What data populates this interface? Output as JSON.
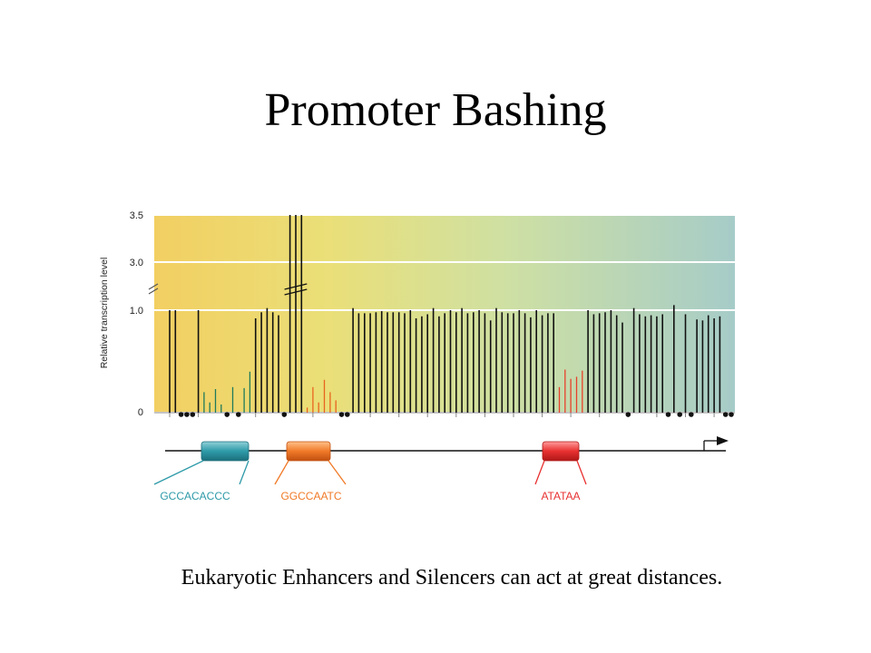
{
  "slide": {
    "title": "Promoter Bashing",
    "caption": "Eukaryotic Enhancers and Silencers can act at great distances."
  },
  "colors": {
    "black_bar": "#111111",
    "green_bar": "#1f7a5c",
    "orange_bar": "#e8641e",
    "red_bar": "#e8402a",
    "teal_box": "#2e9aa8",
    "orange_box": "#f07a28",
    "red_box": "#e83030"
  },
  "chart_data": {
    "type": "bar",
    "ylabel": "Relative transcription level",
    "y_ticks": [
      "3.5",
      "3.0",
      "1.0",
      "0"
    ],
    "break_marks": "//",
    "bars": [
      {
        "v": 1.0,
        "c": "k"
      },
      {
        "v": 1.0,
        "c": "k"
      },
      {
        "v": 0,
        "c": "dot"
      },
      {
        "v": 0,
        "c": "dot"
      },
      {
        "v": 0,
        "c": "dot"
      },
      {
        "v": 1.0,
        "c": "k"
      },
      {
        "v": 0.2,
        "c": "g"
      },
      {
        "v": 0.1,
        "c": "g"
      },
      {
        "v": 0.23,
        "c": "g"
      },
      {
        "v": 0.08,
        "c": "g"
      },
      {
        "v": 0,
        "c": "dot"
      },
      {
        "v": 0.25,
        "c": "g"
      },
      {
        "v": 0,
        "c": "dot"
      },
      {
        "v": 0.24,
        "c": "g"
      },
      {
        "v": 0.4,
        "c": "g"
      },
      {
        "v": 0.92,
        "c": "k"
      },
      {
        "v": 0.98,
        "c": "k"
      },
      {
        "v": 1.02,
        "c": "k"
      },
      {
        "v": 0.98,
        "c": "k"
      },
      {
        "v": 0.95,
        "c": "k"
      },
      {
        "v": 0,
        "c": "dot"
      },
      {
        "v": 3.5,
        "c": "k"
      },
      {
        "v": 3.5,
        "c": "k"
      },
      {
        "v": 3.5,
        "c": "k"
      },
      {
        "v": 0.05,
        "c": "o"
      },
      {
        "v": 0.25,
        "c": "o"
      },
      {
        "v": 0.1,
        "c": "o"
      },
      {
        "v": 0.32,
        "c": "o"
      },
      {
        "v": 0.2,
        "c": "o"
      },
      {
        "v": 0.12,
        "c": "o"
      },
      {
        "v": 0,
        "c": "dot"
      },
      {
        "v": 0,
        "c": "dot"
      },
      {
        "v": 1.02,
        "c": "k"
      },
      {
        "v": 0.97,
        "c": "k"
      },
      {
        "v": 0.97,
        "c": "k"
      },
      {
        "v": 0.97,
        "c": "k"
      },
      {
        "v": 0.98,
        "c": "k"
      },
      {
        "v": 0.99,
        "c": "k"
      },
      {
        "v": 0.98,
        "c": "k"
      },
      {
        "v": 0.98,
        "c": "k"
      },
      {
        "v": 0.98,
        "c": "k"
      },
      {
        "v": 0.97,
        "c": "k"
      },
      {
        "v": 1.0,
        "c": "k"
      },
      {
        "v": 0.92,
        "c": "k"
      },
      {
        "v": 0.94,
        "c": "k"
      },
      {
        "v": 0.96,
        "c": "k"
      },
      {
        "v": 1.02,
        "c": "k"
      },
      {
        "v": 0.94,
        "c": "k"
      },
      {
        "v": 0.97,
        "c": "k"
      },
      {
        "v": 1.0,
        "c": "k"
      },
      {
        "v": 0.98,
        "c": "k"
      },
      {
        "v": 1.02,
        "c": "k"
      },
      {
        "v": 0.97,
        "c": "k"
      },
      {
        "v": 0.98,
        "c": "k"
      },
      {
        "v": 1.0,
        "c": "k"
      },
      {
        "v": 0.97,
        "c": "k"
      },
      {
        "v": 0.9,
        "c": "k"
      },
      {
        "v": 1.02,
        "c": "k"
      },
      {
        "v": 0.98,
        "c": "k"
      },
      {
        "v": 0.97,
        "c": "k"
      },
      {
        "v": 0.97,
        "c": "k"
      },
      {
        "v": 1.0,
        "c": "k"
      },
      {
        "v": 0.97,
        "c": "k"
      },
      {
        "v": 0.93,
        "c": "k"
      },
      {
        "v": 1.0,
        "c": "k"
      },
      {
        "v": 0.95,
        "c": "k"
      },
      {
        "v": 0.97,
        "c": "k"
      },
      {
        "v": 0.97,
        "c": "k"
      },
      {
        "v": 0.25,
        "c": "r"
      },
      {
        "v": 0.42,
        "c": "r"
      },
      {
        "v": 0.33,
        "c": "r"
      },
      {
        "v": 0.35,
        "c": "r"
      },
      {
        "v": 0.41,
        "c": "r"
      },
      {
        "v": 1.0,
        "c": "k"
      },
      {
        "v": 0.96,
        "c": "k"
      },
      {
        "v": 0.97,
        "c": "k"
      },
      {
        "v": 0.98,
        "c": "k"
      },
      {
        "v": 1.0,
        "c": "k"
      },
      {
        "v": 0.95,
        "c": "k"
      },
      {
        "v": 0.88,
        "c": "k"
      },
      {
        "v": 0,
        "c": "dot"
      },
      {
        "v": 1.02,
        "c": "k"
      },
      {
        "v": 0.96,
        "c": "k"
      },
      {
        "v": 0.94,
        "c": "k"
      },
      {
        "v": 0.95,
        "c": "k"
      },
      {
        "v": 0.94,
        "c": "k"
      },
      {
        "v": 0.96,
        "c": "k"
      },
      {
        "v": 0,
        "c": "dot"
      },
      {
        "v": 1.05,
        "c": "k"
      },
      {
        "v": 0,
        "c": "dot"
      },
      {
        "v": 0.96,
        "c": "k"
      },
      {
        "v": 0,
        "c": "dot"
      },
      {
        "v": 0.91,
        "c": "k"
      },
      {
        "v": 0.9,
        "c": "k"
      },
      {
        "v": 0.95,
        "c": "k"
      },
      {
        "v": 0.92,
        "c": "k"
      },
      {
        "v": 0.94,
        "c": "k"
      },
      {
        "v": 0,
        "c": "dot"
      },
      {
        "v": 0,
        "c": "dot"
      }
    ]
  },
  "elements": [
    {
      "label": "GCCACACCC",
      "color": "#2e9aa8"
    },
    {
      "label": "GGCCAATC",
      "color": "#f07a28"
    },
    {
      "label": "ATATAA",
      "color": "#e83030"
    }
  ]
}
